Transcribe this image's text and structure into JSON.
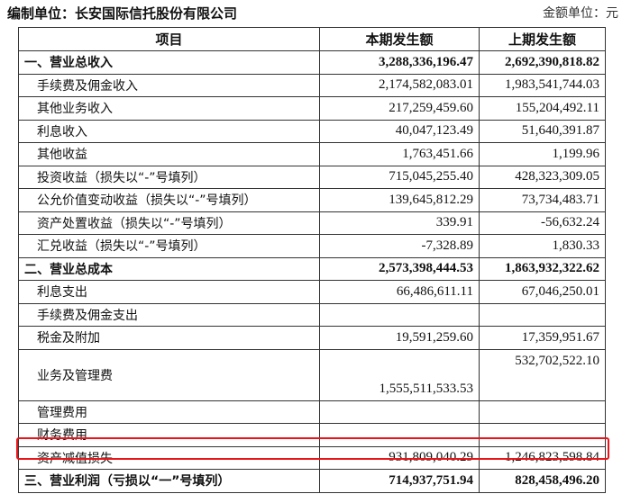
{
  "header": {
    "unit": "编制单位：长安国际信托股份有限公司",
    "currency": "金额单位：元"
  },
  "columns": [
    "项目",
    "本期发生额",
    "上期发生额"
  ],
  "rows": [
    {
      "name": "一、营业总收入",
      "current": "3,288,336,196.47",
      "previous": "2,692,390,818.82"
    },
    {
      "name": "手续费及佣金收入",
      "current": "2,174,582,083.01",
      "previous": "1,983,541,744.03"
    },
    {
      "name": "其他业务收入",
      "current": "217,259,459.60",
      "previous": "155,204,492.11"
    },
    {
      "name": "利息收入",
      "current": "40,047,123.49",
      "previous": "51,640,391.87"
    },
    {
      "name": "其他收益",
      "current": "1,763,451.66",
      "previous": "1,199.96"
    },
    {
      "name": "投资收益（损失以“-”号填列）",
      "current": "715,045,255.40",
      "previous": "428,323,309.05"
    },
    {
      "name": "公允价值变动收益（损失以“-”号填列）",
      "current": "139,645,812.29",
      "previous": "73,734,483.71"
    },
    {
      "name": "资产处置收益（损失以“-”号填列）",
      "current": "339.91",
      "previous": "-56,632.24"
    },
    {
      "name": "汇兑收益（损失以“-”号填列）",
      "current": "-7,328.89",
      "previous": "1,830.33"
    },
    {
      "name": "二、营业总成本",
      "current": "2,573,398,444.53",
      "previous": "1,863,932,322.62"
    },
    {
      "name": "利息支出",
      "current": "66,486,611.11",
      "previous": "67,046,250.01"
    },
    {
      "name": "手续费及佣金支出",
      "current": "",
      "previous": ""
    },
    {
      "name": "税金及附加",
      "current": "19,591,259.60",
      "previous": "17,359,951.67"
    },
    {
      "name": "业务及管理费",
      "current": "1,555,511,533.53",
      "previous": "532,702,522.10"
    },
    {
      "name": "管理费用",
      "current": "",
      "previous": ""
    },
    {
      "name": "财务费用",
      "current": "",
      "previous": ""
    },
    {
      "name": "资产减值损失",
      "current": "931,809,040.29",
      "previous": "1,246,823,598.84"
    },
    {
      "name": "三、营业利润（亏损以“一”号填列）",
      "current": "714,937,751.94",
      "previous": "828,458,496.20"
    }
  ],
  "highlight": {
    "row": "资产减值损失",
    "color": "#e8151b"
  }
}
